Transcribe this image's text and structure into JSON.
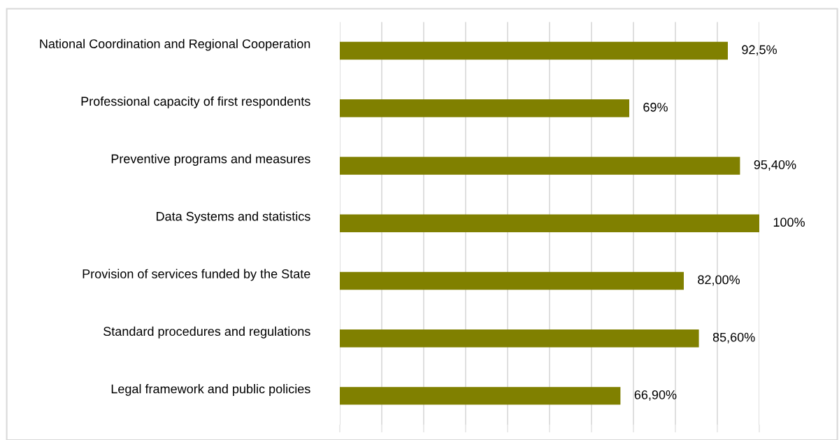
{
  "chart_data": {
    "type": "bar",
    "orientation": "horizontal",
    "categories": [
      "National Coordination and Regional Cooperation",
      "Professional capacity of first respondents",
      "Preventive programs and measures",
      "Data Systems and statistics",
      "Provision of services funded by the State",
      "Standard procedures and regulations",
      "Legal framework and public policies"
    ],
    "values": [
      92.5,
      69,
      95.4,
      100,
      82,
      85.6,
      66.9
    ],
    "value_labels": [
      "92,5%",
      "69%",
      "95,40%",
      "100%",
      "82,00%",
      "85,60%",
      "66,90%"
    ],
    "color": "#808000",
    "xlim": [
      0,
      100
    ],
    "xticks": [
      {
        "value": 0,
        "label": null
      },
      {
        "value": 10,
        "label": null
      },
      {
        "value": 20,
        "label": null
      },
      {
        "value": 30,
        "label": null
      },
      {
        "value": 40,
        "label": null
      },
      {
        "value": 50,
        "label": null
      },
      {
        "value": 60,
        "label": null
      },
      {
        "value": 70,
        "label": null
      },
      {
        "value": 80,
        "label": null
      },
      {
        "value": 90,
        "label": null
      },
      {
        "value": 100,
        "label": null
      }
    ],
    "grid": "x",
    "tick_labels": "y"
  }
}
